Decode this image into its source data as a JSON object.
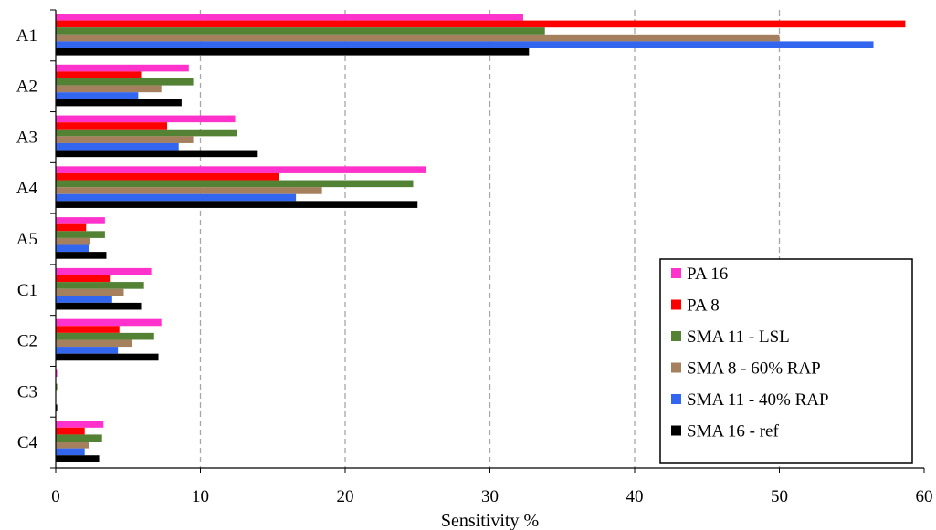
{
  "chart_data": {
    "type": "bar",
    "orientation": "horizontal",
    "title": "",
    "xlabel": "Sensitivity %",
    "ylabel": "",
    "xlim": [
      0,
      60
    ],
    "x_ticks": [
      "0",
      "10",
      "20",
      "30",
      "40",
      "50",
      "60"
    ],
    "grid": "vertical dashed",
    "legend_position": "bottom-right",
    "categories": [
      "A1",
      "A2",
      "A3",
      "A4",
      "A5",
      "C1",
      "C2",
      "C3",
      "C4"
    ],
    "series": [
      {
        "name": "PA 16",
        "color": "#ff33cc",
        "values": [
          32.3,
          9.2,
          12.4,
          25.6,
          3.4,
          6.6,
          7.3,
          0.1,
          3.3
        ]
      },
      {
        "name": "PA 8",
        "color": "#ff0000",
        "values": [
          58.7,
          5.9,
          7.7,
          15.4,
          2.1,
          3.8,
          4.4,
          0.0,
          2.0
        ]
      },
      {
        "name": "SMA 11 - LSL",
        "color": "#548235",
        "values": [
          33.8,
          9.5,
          12.5,
          24.7,
          3.4,
          6.1,
          6.8,
          0.1,
          3.2
        ]
      },
      {
        "name": "SMA 8 - 60% RAP",
        "color": "#a5805f",
        "values": [
          50.0,
          7.3,
          9.5,
          18.4,
          2.4,
          4.7,
          5.3,
          0.0,
          2.3
        ]
      },
      {
        "name": "SMA 11 - 40% RAP",
        "color": "#3366ee",
        "values": [
          56.5,
          5.7,
          8.5,
          16.6,
          2.3,
          3.9,
          4.3,
          0.0,
          2.0
        ]
      },
      {
        "name": "SMA 16 - ref",
        "color": "#000000",
        "values": [
          32.7,
          8.7,
          13.9,
          25.0,
          3.5,
          5.9,
          7.1,
          0.1,
          3.0
        ]
      }
    ]
  }
}
